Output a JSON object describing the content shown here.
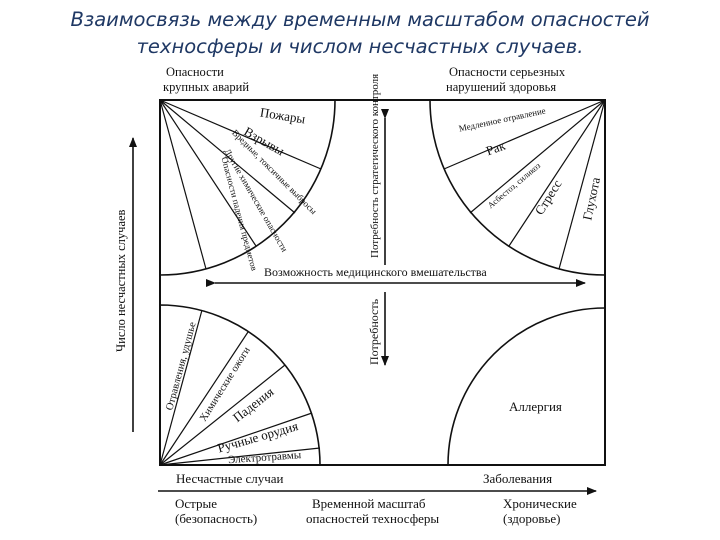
{
  "title": {
    "line1": "Взаимосвязь между временным масштабом опасностей",
    "line2": "техносферы и числом несчастных случаев."
  },
  "corners": {
    "top_left": {
      "line1": "Опасности",
      "line2": "крупных аварий"
    },
    "top_right": {
      "line1": "Опасности серьезных",
      "line2": "нарушений здоровья"
    }
  },
  "quadrants": {
    "top_left": [
      "Пожары",
      "Взрывы",
      "Вредные, токсичные выбросы",
      "Другие химические опасности",
      "Опасности падения предметов"
    ],
    "top_right": [
      "Медленное отравление",
      "Рак",
      "Асбестоз, силикоз",
      "Стресс",
      "Глухота"
    ],
    "bottom_left": [
      "Отравления, удушье",
      "Химические ожоги",
      "Падения",
      "Ручные орудия",
      "Электротравмы"
    ],
    "bottom_right": "Аллергия"
  },
  "axes": {
    "vertical_label": "Число несчастных случаев",
    "center_horizontal": "Возможность медицинского вмешательства",
    "center_vertical_top": "Потребность стратегического контроля",
    "center_vertical_bottom": "Потребность"
  },
  "bottom": {
    "left_label": "Несчастные случаи",
    "right_label": "Заболевания",
    "acute_line1": "Острые",
    "acute_line2": "(безопасность)",
    "timescale_line1": "Временной масштаб",
    "timescale_line2": "опасностей техносферы",
    "chronic_line1": "Хронические",
    "chronic_line2": "(здоровье)"
  },
  "colors": {
    "title": "#1f3864",
    "ink": "#111111"
  }
}
